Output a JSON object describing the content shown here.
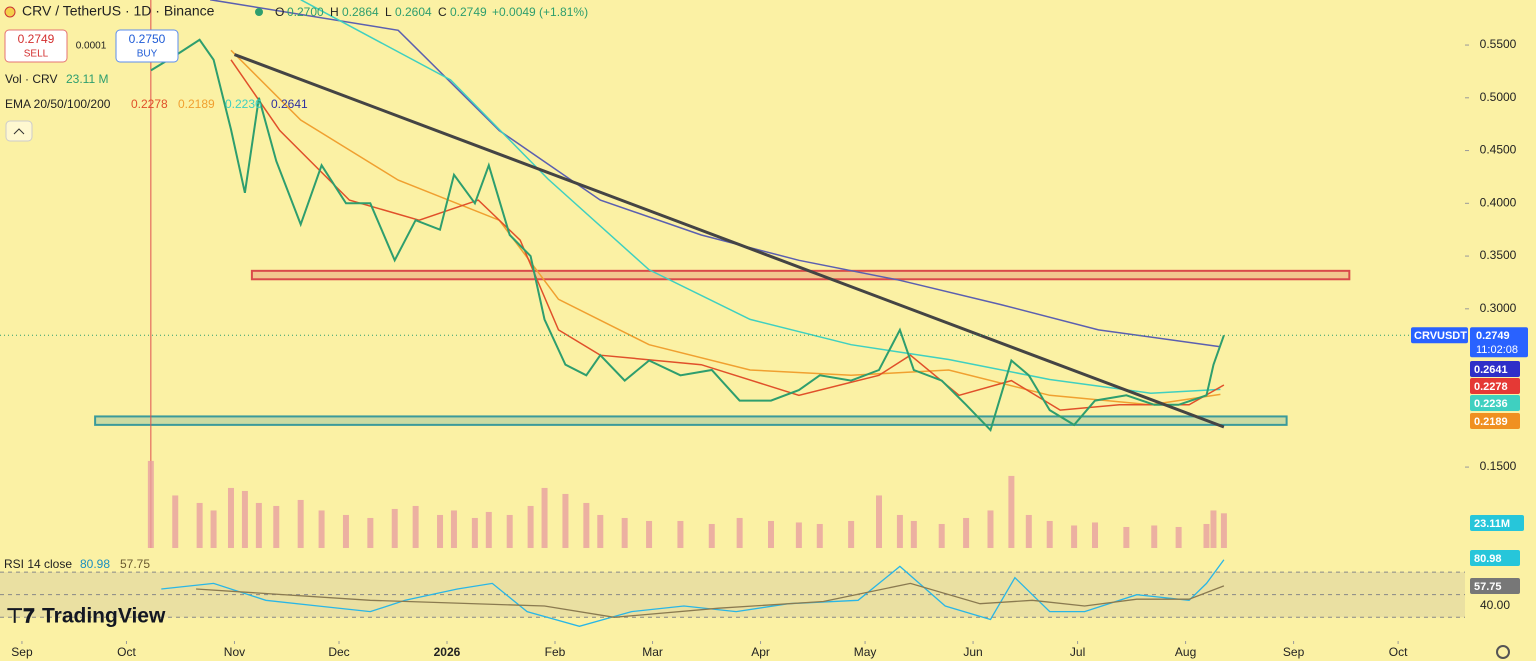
{
  "header": {
    "symbol": "CRV / TetherUS · 1D · Binance",
    "o_label": "O",
    "o": "0.2700",
    "h_label": "H",
    "h": "0.2864",
    "l_label": "L",
    "l": "0.2604",
    "c_label": "C",
    "change": "+0.0049 (+1.81%)",
    "sell_price": "0.2749",
    "sell": "SELL",
    "spread": "0.0001",
    "buy_price": "0.2750",
    "buy": "BUY",
    "vol_value": "23.11 M",
    "ema_label": "EMA 20/50/100/200",
    "countdown": "11:02:08",
    "vol_axis_label": "23.11M",
    "rsi_label": "RSI 14 close",
    "brand": "TradingView"
  },
  "chart_data": [
    {
      "type": "line",
      "x": [
        37,
        44,
        51,
        55,
        60,
        64,
        68,
        73,
        80,
        86,
        93,
        100,
        107,
        113,
        120,
        124,
        130,
        134,
        140,
        146,
        150,
        156,
        162,
        166,
        173,
        180,
        189,
        198,
        206,
        215,
        223,
        229,
        238,
        246,
        252,
        256,
        264,
        271,
        278,
        284,
        289,
        295,
        302,
        308,
        317,
        325,
        332,
        340,
        342,
        345
      ],
      "series": [
        {
          "name": "CRVUSDT",
          "color": "#2e9e6e",
          "values": [
            0.526,
            0.54,
            0.555,
            0.536,
            0.47,
            0.41,
            0.5,
            0.44,
            0.38,
            0.436,
            0.4,
            0.4,
            0.346,
            0.384,
            0.375,
            0.427,
            0.4,
            0.436,
            0.37,
            0.35,
            0.29,
            0.247,
            0.237,
            0.256,
            0.232,
            0.251,
            0.237,
            0.242,
            0.213,
            0.213,
            0.223,
            0.237,
            0.232,
            0.242,
            0.28,
            0.242,
            0.232,
            0.209,
            0.185,
            0.251,
            0.237,
            0.204,
            0.19,
            0.213,
            0.218,
            0.209,
            0.209,
            0.218,
            0.247,
            0.2749
          ]
        },
        {
          "color": "#e0502a",
          "x": [
            60,
            74,
            94,
            114,
            131,
            143,
            154,
            166,
            195,
            223,
            246,
            255,
            269,
            284,
            298,
            315,
            335,
            345
          ],
          "values": [
            0.536,
            0.469,
            0.403,
            0.384,
            0.403,
            0.365,
            0.28,
            0.256,
            0.247,
            0.218,
            0.237,
            0.256,
            0.218,
            0.232,
            0.204,
            0.209,
            0.209,
            0.2278
          ]
        },
        {
          "color": "#f0a030",
          "x": [
            60,
            80,
            108,
            137,
            154,
            180,
            209,
            238,
            266,
            295,
            324,
            344
          ],
          "values": [
            0.545,
            0.479,
            0.422,
            0.384,
            0.309,
            0.266,
            0.242,
            0.237,
            0.242,
            0.218,
            0.209,
            0.2189
          ]
        },
        {
          "color": "#3fd0c0",
          "x": [
            80,
            123,
            151,
            180,
            209,
            238,
            266,
            295,
            324,
            344
          ],
          "values": [
            0.593,
            0.517,
            0.423,
            0.337,
            0.29,
            0.266,
            0.252,
            0.233,
            0.22,
            0.2236
          ]
        },
        {
          "color": "#5b5fb0",
          "x": [
            54,
            108,
            137,
            166,
            195,
            223,
            252,
            281,
            309,
            344
          ],
          "values": [
            0.593,
            0.564,
            0.469,
            0.403,
            0.37,
            0.346,
            0.327,
            0.304,
            0.28,
            0.2641
          ]
        },
        {
          "name": "Vol · CRV",
          "type": "bar",
          "axis": "y2",
          "color": "#e9a0a0",
          "values": [
            58,
            35,
            30,
            25,
            40,
            38,
            30,
            28,
            32,
            25,
            22,
            20,
            26,
            28,
            22,
            25,
            20,
            24,
            22,
            28,
            40,
            36,
            30,
            22,
            20,
            18,
            18,
            16,
            20,
            18,
            17,
            16,
            18,
            35,
            22,
            18,
            16,
            20,
            25,
            48,
            22,
            18,
            15,
            17,
            14,
            15,
            14,
            16,
            25,
            23.11
          ]
        }
      ],
      "xlim": [
        -6.3,
        414.2
      ],
      "xticks": [
        {
          "value": 0,
          "label": "Sep"
        },
        {
          "value": 30,
          "label": "Oct"
        },
        {
          "value": 61,
          "label": "Nov"
        },
        {
          "value": 91,
          "label": "Dec"
        },
        {
          "value": 122,
          "label": "2026"
        },
        {
          "value": 153,
          "label": "Feb"
        },
        {
          "value": 181,
          "label": "Mar"
        },
        {
          "value": 212,
          "label": "Apr"
        },
        {
          "value": 242,
          "label": "May"
        },
        {
          "value": 273,
          "label": "Jun"
        },
        {
          "value": 303,
          "label": "Jul"
        },
        {
          "value": 334,
          "label": "Aug"
        },
        {
          "value": 365,
          "label": "Sep"
        },
        {
          "value": 395,
          "label": "Oct"
        }
      ],
      "ylim": [
        0.0733,
        0.5927
      ],
      "yticks": [
        {
          "value": 0.55,
          "label": "0.5500"
        },
        {
          "value": 0.5,
          "label": "0.5000"
        },
        {
          "value": 0.45,
          "label": "0.4500"
        },
        {
          "value": 0.4,
          "label": "0.4000"
        },
        {
          "value": 0.35,
          "label": "0.3500"
        },
        {
          "value": 0.3,
          "label": "0.3000"
        },
        {
          "value": 0.15,
          "label": "0.1500"
        }
      ],
      "y2lim": [
        0,
        365
      ],
      "trendline": {
        "x": [
          61,
          345
        ],
        "y": [
          0.541,
          0.188
        ],
        "color": "#444444"
      },
      "zones": [
        {
          "x": [
            66,
            381
          ],
          "y": [
            0.328,
            0.336
          ],
          "color": "#d94a4a"
        },
        {
          "x": [
            21,
            363
          ],
          "y": [
            0.19,
            0.198
          ],
          "color": "#3a9a9a"
        }
      ],
      "vline": 37
    },
    {
      "type": "line",
      "series": [
        {
          "color": "#29b6e6",
          "x": [
            40,
            55,
            70,
            85,
            100,
            110,
            125,
            135,
            145,
            160,
            175,
            190,
            205,
            220,
            240,
            252,
            265,
            278,
            285,
            295,
            305,
            320,
            335,
            340,
            345
          ],
          "values": [
            55,
            60,
            45,
            40,
            35,
            45,
            55,
            60,
            35,
            22,
            35,
            40,
            35,
            42,
            45,
            75,
            40,
            28,
            65,
            35,
            35,
            50,
            45,
            60,
            80.98
          ]
        },
        {
          "color": "#8a7a50",
          "x": [
            50,
            100,
            150,
            170,
            200,
            230,
            255,
            275,
            290,
            305,
            320,
            335,
            345
          ],
          "values": [
            55,
            45,
            40,
            30,
            38,
            44,
            60,
            42,
            45,
            40,
            46,
            46,
            57.75
          ]
        }
      ],
      "ylim": [
        9.9,
        91.3
      ],
      "yticks": [
        {
          "value": 40,
          "label": "40.00"
        }
      ],
      "levels": [
        30,
        50,
        70
      ]
    }
  ]
}
